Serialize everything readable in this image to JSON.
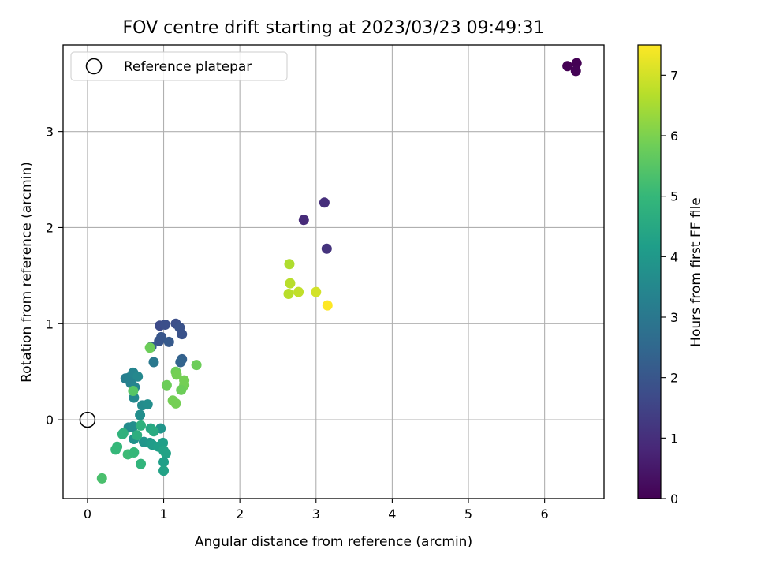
{
  "chart_data": {
    "type": "scatter",
    "title": "FOV centre drift starting at 2023/03/23 09:49:31",
    "xlabel": "Angular distance from reference (arcmin)",
    "ylabel": "Rotation from reference (arcmin)",
    "xlim": [
      -0.32,
      6.78
    ],
    "ylim": [
      -0.82,
      3.9
    ],
    "x_ticks": [
      0,
      1,
      2,
      3,
      4,
      5,
      6
    ],
    "y_ticks": [
      0,
      1,
      2,
      3
    ],
    "grid": true,
    "legend": {
      "placement": "top-left",
      "entries": [
        "Reference platepar"
      ]
    },
    "reference_point": {
      "x": 0,
      "y": 0,
      "label": "Reference platepar"
    },
    "colorbar": {
      "label": "Hours from first FF file",
      "colormap": "viridis",
      "range": [
        0,
        7.5
      ],
      "ticks": [
        0,
        1,
        2,
        3,
        4,
        5,
        6,
        7
      ]
    },
    "points": [
      {
        "x": 6.3,
        "y": 3.68,
        "c": 0.0
      },
      {
        "x": 6.42,
        "y": 3.71,
        "c": 0.0
      },
      {
        "x": 6.41,
        "y": 3.63,
        "c": 0.05
      },
      {
        "x": 2.84,
        "y": 2.08,
        "c": 0.9
      },
      {
        "x": 3.11,
        "y": 2.26,
        "c": 1.0
      },
      {
        "x": 3.14,
        "y": 1.78,
        "c": 1.1
      },
      {
        "x": 0.95,
        "y": 0.98,
        "c": 1.7
      },
      {
        "x": 1.02,
        "y": 0.99,
        "c": 1.8
      },
      {
        "x": 1.16,
        "y": 1.0,
        "c": 1.8
      },
      {
        "x": 1.21,
        "y": 0.96,
        "c": 1.9
      },
      {
        "x": 0.97,
        "y": 0.86,
        "c": 2.0
      },
      {
        "x": 0.94,
        "y": 0.82,
        "c": 2.0
      },
      {
        "x": 1.07,
        "y": 0.81,
        "c": 2.1
      },
      {
        "x": 1.24,
        "y": 0.89,
        "c": 1.9
      },
      {
        "x": 0.84,
        "y": 0.76,
        "c": 2.2
      },
      {
        "x": 1.24,
        "y": 0.63,
        "c": 2.3
      },
      {
        "x": 1.22,
        "y": 0.6,
        "c": 2.4
      },
      {
        "x": 0.87,
        "y": 0.6,
        "c": 3.0
      },
      {
        "x": 0.5,
        "y": 0.43,
        "c": 3.2
      },
      {
        "x": 0.55,
        "y": 0.44,
        "c": 3.3
      },
      {
        "x": 0.6,
        "y": 0.49,
        "c": 3.4
      },
      {
        "x": 0.66,
        "y": 0.45,
        "c": 3.5
      },
      {
        "x": 0.57,
        "y": 0.38,
        "c": 3.3
      },
      {
        "x": 0.62,
        "y": 0.34,
        "c": 3.4
      },
      {
        "x": 0.61,
        "y": 0.23,
        "c": 3.5
      },
      {
        "x": 0.72,
        "y": 0.15,
        "c": 3.6
      },
      {
        "x": 0.79,
        "y": 0.16,
        "c": 3.7
      },
      {
        "x": 0.69,
        "y": 0.05,
        "c": 3.7
      },
      {
        "x": 0.54,
        "y": -0.08,
        "c": 3.6
      },
      {
        "x": 0.6,
        "y": -0.07,
        "c": 3.7
      },
      {
        "x": 0.61,
        "y": -0.2,
        "c": 3.8
      },
      {
        "x": 0.74,
        "y": -0.23,
        "c": 3.9
      },
      {
        "x": 0.82,
        "y": -0.24,
        "c": 4.0
      },
      {
        "x": 0.96,
        "y": -0.09,
        "c": 3.9
      },
      {
        "x": 0.85,
        "y": -0.26,
        "c": 4.1
      },
      {
        "x": 0.93,
        "y": -0.28,
        "c": 4.2
      },
      {
        "x": 0.99,
        "y": -0.24,
        "c": 4.2
      },
      {
        "x": 1.0,
        "y": -0.32,
        "c": 4.3
      },
      {
        "x": 1.03,
        "y": -0.35,
        "c": 4.3
      },
      {
        "x": 1.0,
        "y": -0.44,
        "c": 4.2
      },
      {
        "x": 1.0,
        "y": -0.53,
        "c": 4.3
      },
      {
        "x": 0.83,
        "y": -0.09,
        "c": 4.5
      },
      {
        "x": 0.87,
        "y": -0.12,
        "c": 4.6
      },
      {
        "x": 0.7,
        "y": -0.06,
        "c": 4.8
      },
      {
        "x": 0.65,
        "y": -0.16,
        "c": 4.7
      },
      {
        "x": 0.46,
        "y": -0.15,
        "c": 4.9
      },
      {
        "x": 0.47,
        "y": -0.14,
        "c": 4.8
      },
      {
        "x": 0.39,
        "y": -0.28,
        "c": 5.0
      },
      {
        "x": 0.37,
        "y": -0.31,
        "c": 5.0
      },
      {
        "x": 0.53,
        "y": -0.36,
        "c": 5.1
      },
      {
        "x": 0.61,
        "y": -0.34,
        "c": 5.0
      },
      {
        "x": 0.7,
        "y": -0.46,
        "c": 4.9
      },
      {
        "x": 0.19,
        "y": -0.61,
        "c": 5.3
      },
      {
        "x": 0.6,
        "y": 0.3,
        "c": 5.5
      },
      {
        "x": 0.82,
        "y": 0.75,
        "c": 5.8
      },
      {
        "x": 1.16,
        "y": 0.5,
        "c": 5.8
      },
      {
        "x": 1.17,
        "y": 0.47,
        "c": 5.9
      },
      {
        "x": 1.43,
        "y": 0.57,
        "c": 5.8
      },
      {
        "x": 1.04,
        "y": 0.36,
        "c": 5.8
      },
      {
        "x": 1.27,
        "y": 0.41,
        "c": 5.9
      },
      {
        "x": 1.27,
        "y": 0.36,
        "c": 5.9
      },
      {
        "x": 1.23,
        "y": 0.31,
        "c": 5.8
      },
      {
        "x": 1.12,
        "y": 0.2,
        "c": 5.9
      },
      {
        "x": 1.16,
        "y": 0.17,
        "c": 5.9
      },
      {
        "x": 2.65,
        "y": 1.62,
        "c": 6.6
      },
      {
        "x": 2.66,
        "y": 1.42,
        "c": 6.7
      },
      {
        "x": 2.64,
        "y": 1.31,
        "c": 6.7
      },
      {
        "x": 2.77,
        "y": 1.33,
        "c": 6.8
      },
      {
        "x": 3.0,
        "y": 1.33,
        "c": 7.0
      },
      {
        "x": 3.15,
        "y": 1.19,
        "c": 7.5
      }
    ]
  }
}
